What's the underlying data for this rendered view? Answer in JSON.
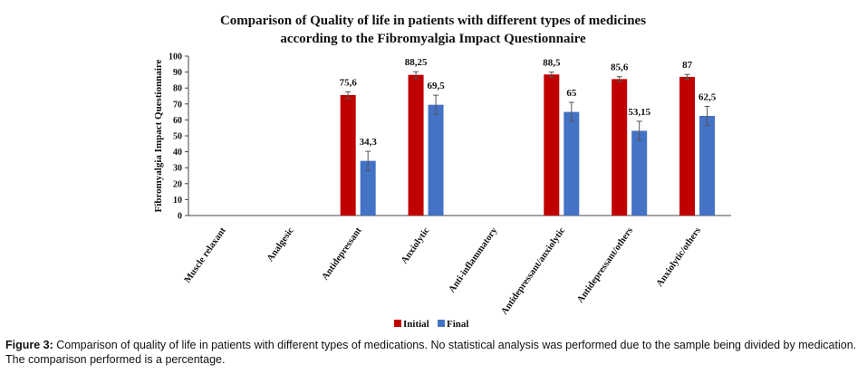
{
  "chart_data": {
    "type": "bar",
    "title_line1": "Comparison of Quality of life in patients with different types of medicines",
    "title_line2": "according to the Fibromyalgia Impact Questionnaire",
    "xlabel": "",
    "ylabel": "Fibromyalgia Impact Questionnaire",
    "ylim": [
      0,
      100
    ],
    "yticks": [
      "0",
      "10",
      "20",
      "30",
      "40",
      "50",
      "60",
      "70",
      "80",
      "90",
      "100"
    ],
    "categories": [
      "Muscle relaxant",
      "Analgesic",
      "Antidepressant",
      "Anxiolytic",
      "Anti-inflammatory",
      "Antidepressant/anxiolytic",
      "Antidepressant/others",
      "Anxiolytic/others"
    ],
    "series": [
      {
        "name": "Initial",
        "color": "#c00000",
        "values": [
          null,
          null,
          75.6,
          88.25,
          null,
          88.5,
          85.6,
          87
        ],
        "labels": [
          "",
          "",
          "75,6",
          "88,25",
          "",
          "88,5",
          "85,6",
          "87"
        ],
        "errors": [
          null,
          null,
          2,
          2,
          null,
          1.5,
          1.5,
          1.5
        ]
      },
      {
        "name": "Final",
        "color": "#4472c4",
        "values": [
          null,
          null,
          34.3,
          69.5,
          null,
          65,
          53.15,
          62.5
        ],
        "labels": [
          "",
          "",
          "34,3",
          "69,5",
          "",
          "65",
          "53,15",
          "62,5"
        ],
        "errors": [
          null,
          null,
          6,
          6,
          null,
          6,
          6,
          6
        ]
      }
    ],
    "legend_position": "bottom",
    "grid": false
  },
  "caption": {
    "label": "Figure 3:",
    "text": " Comparison of quality of life in patients with different types of medications. No statistical analysis was performed due to the sample being divided by medication. The comparison performed is a percentage."
  }
}
